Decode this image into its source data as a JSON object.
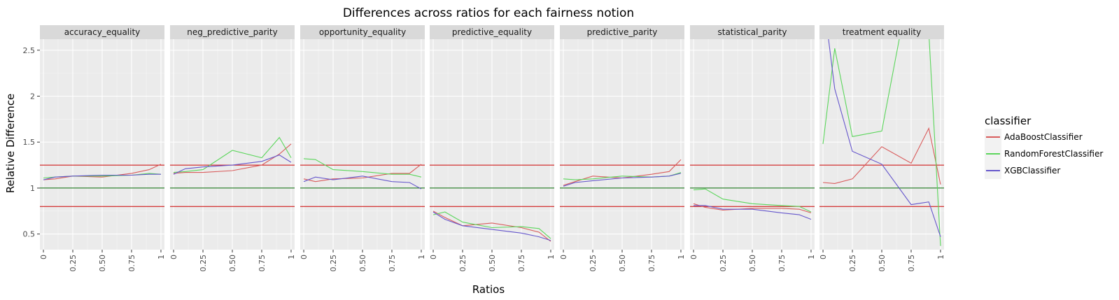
{
  "chart_data": {
    "type": "line",
    "title": "Differences across ratios for each fairness notion",
    "xlabel": "Ratios",
    "ylabel": "Relative Difference",
    "xlim": [
      -0.03,
      1.03
    ],
    "ylim": [
      0.33,
      2.62
    ],
    "x_ticks": [
      0,
      0.25,
      0.5,
      0.75,
      1
    ],
    "x_tick_labels": [
      "0",
      "0.25",
      "0.50",
      "0.75",
      "1"
    ],
    "y_ticks": [
      0.5,
      1,
      1.5,
      2,
      2.5
    ],
    "y_tick_labels": [
      "0.5",
      "1",
      "1.5",
      "2",
      "2.5"
    ],
    "grid": true,
    "legend": {
      "title": "classifier",
      "placement": "right",
      "entries": [
        {
          "name": "AdaBoostClassifier",
          "color": "#d95c5c"
        },
        {
          "name": "RandomForestClassifier",
          "color": "#5cd65c"
        },
        {
          "name": "XGBClassifier",
          "color": "#6657cc"
        }
      ]
    },
    "reference_lines": [
      {
        "y": 1.25,
        "color": "#cc0000"
      },
      {
        "y": 1.0,
        "color": "#006600"
      },
      {
        "y": 0.8,
        "color": "#cc0000"
      }
    ],
    "x": [
      0,
      0.1,
      0.25,
      0.5,
      0.75,
      0.9,
      1
    ],
    "facets": [
      {
        "label": "accuracy_equality",
        "series": [
          {
            "name": "AdaBoostClassifier",
            "values": [
              1.09,
              1.1,
              1.13,
              1.12,
              1.16,
              1.2,
              1.26
            ]
          },
          {
            "name": "RandomForestClassifier",
            "values": [
              1.11,
              1.12,
              1.13,
              1.13,
              1.14,
              1.16,
              1.15
            ]
          },
          {
            "name": "XGBClassifier",
            "values": [
              1.09,
              1.12,
              1.13,
              1.14,
              1.14,
              1.15,
              1.15
            ]
          }
        ]
      },
      {
        "label": "neg_predictive_parity",
        "series": [
          {
            "name": "AdaBoostClassifier",
            "values": [
              1.16,
              1.17,
              1.17,
              1.19,
              1.25,
              1.37,
              1.48
            ]
          },
          {
            "name": "RandomForestClassifier",
            "values": [
              1.17,
              1.18,
              1.2,
              1.41,
              1.33,
              1.55,
              1.33
            ]
          },
          {
            "name": "XGBClassifier",
            "values": [
              1.15,
              1.21,
              1.23,
              1.25,
              1.29,
              1.36,
              1.28
            ]
          }
        ]
      },
      {
        "label": "opportunity_equality",
        "series": [
          {
            "name": "AdaBoostClassifier",
            "values": [
              1.1,
              1.07,
              1.1,
              1.11,
              1.16,
              1.16,
              1.26
            ]
          },
          {
            "name": "RandomForestClassifier",
            "values": [
              1.32,
              1.31,
              1.2,
              1.18,
              1.15,
              1.15,
              1.12
            ]
          },
          {
            "name": "XGBClassifier",
            "values": [
              1.07,
              1.12,
              1.09,
              1.13,
              1.07,
              1.06,
              0.99
            ]
          }
        ]
      },
      {
        "label": "predictive_equality",
        "series": [
          {
            "name": "AdaBoostClassifier",
            "values": [
              0.75,
              0.68,
              0.59,
              0.62,
              0.57,
              0.52,
              0.42
            ]
          },
          {
            "name": "RandomForestClassifier",
            "values": [
              0.71,
              0.74,
              0.63,
              0.57,
              0.58,
              0.56,
              0.45
            ]
          },
          {
            "name": "XGBClassifier",
            "values": [
              0.74,
              0.66,
              0.59,
              0.55,
              0.51,
              0.47,
              0.43
            ]
          }
        ]
      },
      {
        "label": "predictive_parity",
        "series": [
          {
            "name": "AdaBoostClassifier",
            "values": [
              1.03,
              1.07,
              1.13,
              1.11,
              1.15,
              1.18,
              1.31
            ]
          },
          {
            "name": "RandomForestClassifier",
            "values": [
              1.1,
              1.09,
              1.1,
              1.13,
              1.12,
              1.13,
              1.17
            ]
          },
          {
            "name": "XGBClassifier",
            "values": [
              1.02,
              1.06,
              1.08,
              1.11,
              1.12,
              1.13,
              1.16
            ]
          }
        ]
      },
      {
        "label": "statistical_parity",
        "series": [
          {
            "name": "AdaBoostClassifier",
            "values": [
              0.83,
              0.79,
              0.76,
              0.78,
              0.78,
              0.77,
              0.73
            ]
          },
          {
            "name": "RandomForestClassifier",
            "values": [
              0.98,
              0.99,
              0.88,
              0.83,
              0.81,
              0.8,
              0.74
            ]
          },
          {
            "name": "XGBClassifier",
            "values": [
              0.81,
              0.81,
              0.77,
              0.77,
              0.73,
              0.71,
              0.66
            ]
          }
        ]
      },
      {
        "label": "treatment equality",
        "series": [
          {
            "name": "AdaBoostClassifier",
            "values": [
              1.06,
              1.05,
              1.1,
              1.45,
              1.27,
              1.65,
              1.04
            ]
          },
          {
            "name": "RandomForestClassifier",
            "values": [
              1.48,
              2.52,
              1.56,
              1.62,
              3.3,
              2.7,
              0.37
            ]
          },
          {
            "name": "XGBClassifier",
            "values": [
              3.1,
              2.08,
              1.4,
              1.26,
              0.82,
              0.85,
              0.47
            ]
          }
        ]
      }
    ]
  }
}
